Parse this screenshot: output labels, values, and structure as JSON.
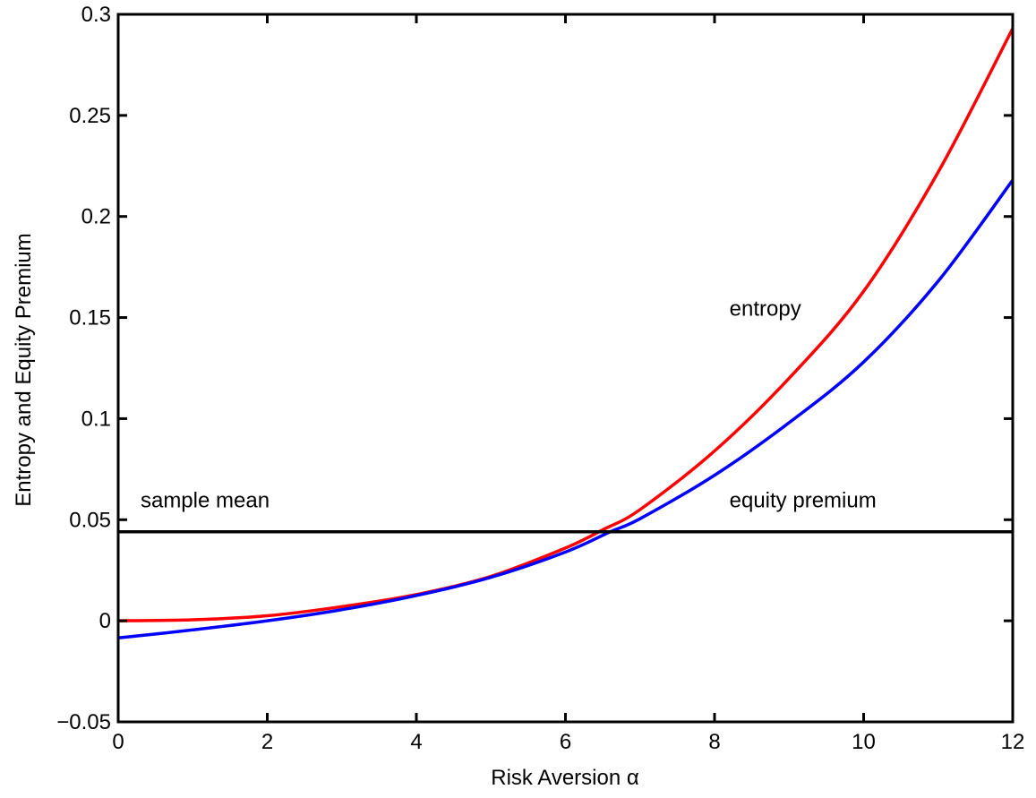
{
  "chart_data": {
    "type": "line",
    "xlabel": "Risk Aversion α",
    "ylabel": "Entropy and Equity Premium",
    "xlim": [
      0,
      12
    ],
    "ylim": [
      -0.05,
      0.3
    ],
    "x_ticks": [
      0,
      2,
      4,
      6,
      8,
      10,
      12
    ],
    "x_tick_labels": [
      "0",
      "2",
      "4",
      "6",
      "8",
      "10",
      "12"
    ],
    "y_ticks": [
      -0.05,
      0,
      0.05,
      0.1,
      0.15,
      0.2,
      0.25,
      0.3
    ],
    "y_tick_labels": [
      "−0.05",
      "0",
      "0.05",
      "0.1",
      "0.15",
      "0.2",
      "0.25",
      "0.3"
    ],
    "grid": false,
    "series": [
      {
        "color": "#ff0000",
        "x": [
          0,
          1,
          2,
          3,
          4,
          5,
          6,
          6.5,
          7,
          8,
          9,
          10,
          11,
          12
        ],
        "y": [
          0,
          0.0005,
          0.0025,
          0.007,
          0.013,
          0.022,
          0.036,
          0.045,
          0.055,
          0.084,
          0.12,
          0.163,
          0.222,
          0.293
        ]
      },
      {
        "color": "#0000ff",
        "x": [
          0,
          1,
          2,
          3,
          4,
          5,
          6,
          6.6,
          7,
          8,
          9,
          10,
          11,
          12
        ],
        "y": [
          -0.0085,
          -0.0045,
          0,
          0.0055,
          0.0125,
          0.0215,
          0.034,
          0.044,
          0.0505,
          0.072,
          0.098,
          0.128,
          0.168,
          0.218
        ]
      },
      {
        "color": "#000000",
        "x": [
          0,
          12
        ],
        "y": [
          0.044,
          0.044
        ]
      }
    ],
    "annotations": [
      {
        "text": "entropy",
        "x": 8.2,
        "y": 0.151
      },
      {
        "text": "equity premium",
        "x": 8.2,
        "y": 0.056
      },
      {
        "text": "sample mean",
        "x": 0.3,
        "y": 0.056
      }
    ]
  }
}
